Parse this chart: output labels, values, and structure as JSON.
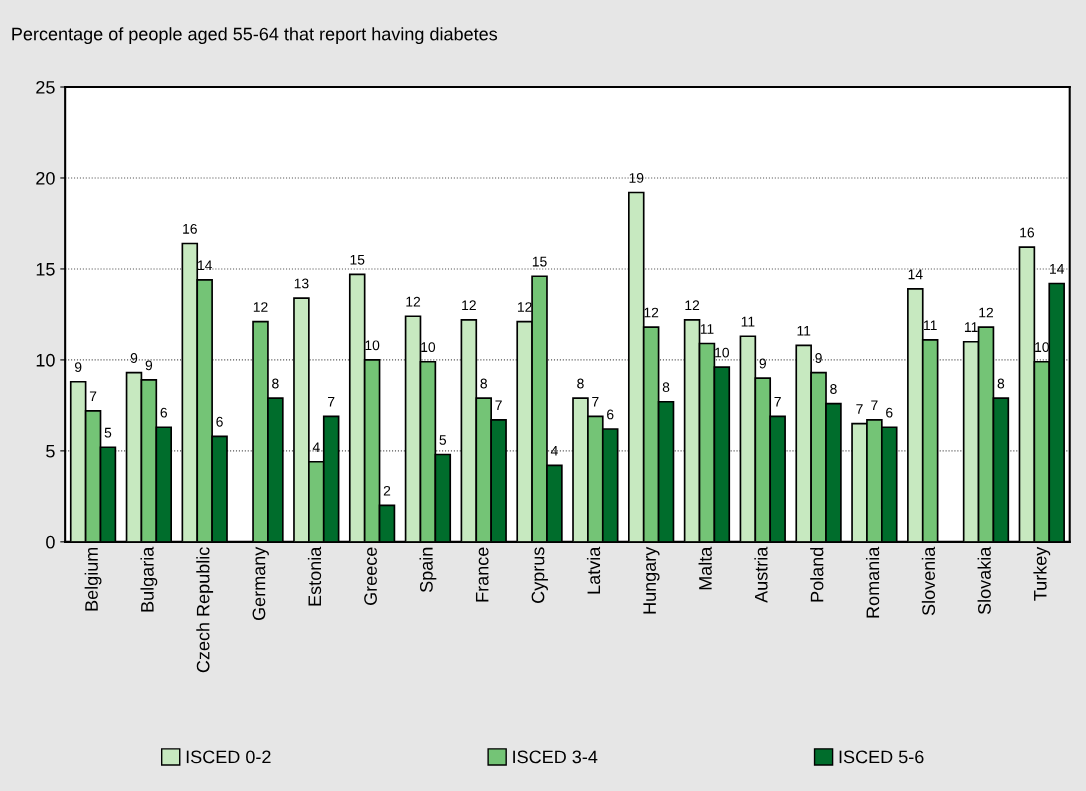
{
  "chart_data": {
    "type": "bar",
    "title": "Percentage of people aged 55-64 that report having diabetes",
    "categories": [
      "Belgium",
      "Bulgaria",
      "Czech Republic",
      "Germany",
      "Estonia",
      "Greece",
      "Spain",
      "France",
      "Cyprus",
      "Latvia",
      "Hungary",
      "Malta",
      "Austria",
      "Poland",
      "Romania",
      "Slovenia",
      "Slovakia",
      "Turkey"
    ],
    "series": [
      {
        "name": "ISCED 0-2",
        "color": "#c7e9c0",
        "values": [
          8.8,
          9.3,
          16.4,
          null,
          13.4,
          14.7,
          12.4,
          12.2,
          12.1,
          7.9,
          19.2,
          12.2,
          11.3,
          10.8,
          6.5,
          13.9,
          11.0,
          16.2
        ],
        "value_labels": [
          "9",
          "9",
          "16",
          null,
          "13",
          "15",
          "12",
          "12",
          "12",
          "8",
          "19",
          "12",
          "11",
          "11",
          "7",
          "14",
          "11",
          "16"
        ]
      },
      {
        "name": "ISCED 3-4",
        "color": "#74c476",
        "values": [
          7.2,
          8.9,
          14.4,
          12.1,
          4.4,
          10.0,
          9.9,
          7.9,
          14.6,
          6.9,
          11.8,
          10.9,
          9.0,
          9.3,
          6.7,
          11.1,
          11.8,
          9.9
        ],
        "value_labels": [
          "7",
          "9",
          "14",
          "12",
          "4",
          "10",
          "10",
          "8",
          "15",
          "7",
          "12",
          "11",
          "9",
          "9",
          "7",
          "11",
          "12",
          "10"
        ]
      },
      {
        "name": "ISCED 5-6",
        "color": "#006d2c",
        "values": [
          5.2,
          6.3,
          5.8,
          7.9,
          6.9,
          2.0,
          4.8,
          6.7,
          4.2,
          6.2,
          7.7,
          9.6,
          6.9,
          7.6,
          6.3,
          null,
          7.9,
          14.2
        ],
        "value_labels": [
          "5",
          "6",
          "6",
          "8",
          "7",
          "2",
          "5",
          "7",
          "4",
          "6",
          "8",
          "10",
          "7",
          "8",
          "6",
          null,
          "8",
          "14"
        ]
      }
    ],
    "ylim": [
      0,
      25
    ],
    "yticks": [
      0,
      5,
      10,
      15,
      20,
      25
    ],
    "grid": "y",
    "legend": "bottom"
  }
}
